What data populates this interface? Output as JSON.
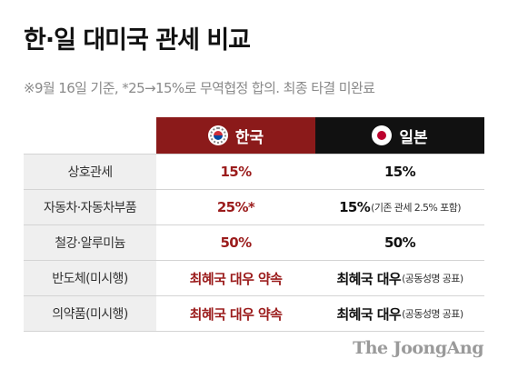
{
  "title": "한·일 대미국 관세 비교",
  "note": "※9월 16일 기준, *25→15%로 무역협정 합의. 최종 타결 미완료",
  "columns": {
    "korea": {
      "label": "한국",
      "flag_icon": "korea-flag-icon",
      "color": "#8b1a1a"
    },
    "japan": {
      "label": "일본",
      "flag_icon": "japan-flag-icon",
      "color": "#111111"
    }
  },
  "rows": [
    {
      "label": "상호관세",
      "korea": "15%",
      "japan": "15%",
      "japan_note": ""
    },
    {
      "label": "자동차·자동차부품",
      "korea": "25%*",
      "japan": "15%",
      "japan_note": "(기존 관세 2.5% 포함)"
    },
    {
      "label": "철강·알루미늄",
      "korea": "50%",
      "japan": "50%",
      "japan_note": ""
    },
    {
      "label": "반도체(미시행)",
      "korea": "최혜국 대우 약속",
      "japan": "최혜국 대우",
      "japan_note": "(공동성명 공표)"
    },
    {
      "label": "의약품(미시행)",
      "korea": "최혜국 대우 약속",
      "japan": "최혜국 대우",
      "japan_note": "(공동성명 공표)"
    }
  ],
  "logo": "The JoongAng"
}
